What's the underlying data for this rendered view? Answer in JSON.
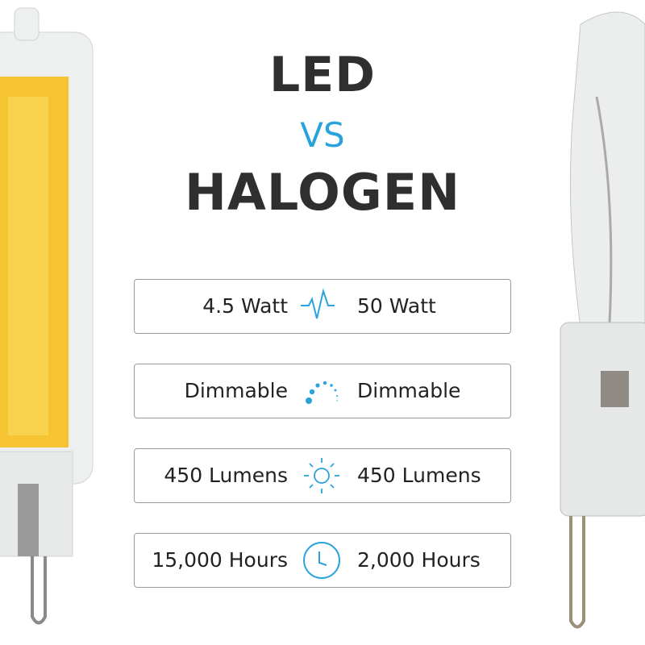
{
  "heading": {
    "line1": "LED",
    "line2": "VS",
    "line3": "HALOGEN"
  },
  "accent_color": "#2aa3dc",
  "rows": [
    {
      "left": "4.5 Watt",
      "icon": "pulse-icon",
      "right": "50 Watt"
    },
    {
      "left": "Dimmable",
      "icon": "dimmer-dots-icon",
      "right": "Dimmable"
    },
    {
      "left": "450 Lumens",
      "icon": "sun-icon",
      "right": "450 Lumens"
    },
    {
      "left": "15,000 Hours",
      "icon": "clock-icon",
      "right": "2,000 Hours"
    }
  ]
}
